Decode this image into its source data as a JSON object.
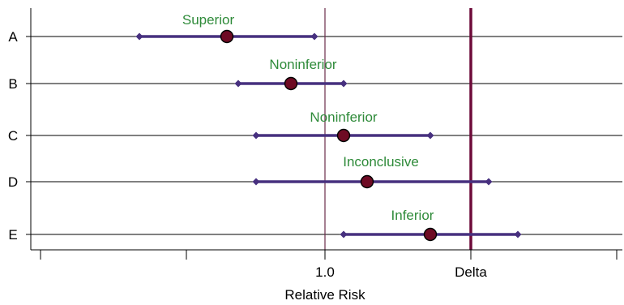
{
  "chart_data": {
    "type": "forest",
    "xlabel": "Relative Risk",
    "x_ticks": [
      {
        "value": -2.0,
        "label": ""
      },
      {
        "value": -1.0,
        "label": ""
      },
      {
        "value": 0.0,
        "label": "1.0"
      },
      {
        "value": 1.0,
        "label": "Delta"
      },
      {
        "value": 2.0,
        "label": ""
      }
    ],
    "xlim": [
      -2.0,
      2.0
    ],
    "reference_lines": [
      {
        "name": "null",
        "value": 0.0,
        "label": "1.0",
        "color": "#6b2d4b"
      },
      {
        "name": "delta",
        "value": 1.0,
        "label": "Delta",
        "color": "#6e0b3a"
      }
    ],
    "rows": [
      {
        "label": "A",
        "estimate": -0.68,
        "ci_low": -1.27,
        "ci_high": -0.07,
        "annotation": "Superior"
      },
      {
        "label": "B",
        "estimate": -0.23,
        "ci_low": -0.6,
        "ci_high": 0.13,
        "annotation": "Noninferior"
      },
      {
        "label": "C",
        "estimate": 0.13,
        "ci_low": -0.48,
        "ci_high": 0.73,
        "annotation": "Noninferior"
      },
      {
        "label": "D",
        "estimate": 0.29,
        "ci_low": -0.48,
        "ci_high": 1.13,
        "annotation": "Inconclusive"
      },
      {
        "label": "E",
        "estimate": 0.73,
        "ci_low": 0.13,
        "ci_high": 1.33,
        "annotation": "Inferior"
      }
    ],
    "colors": {
      "ci_line": "#47307f",
      "point": "#6e0b24",
      "annotation": "#2f8b3a",
      "row_line": "#000000"
    }
  }
}
